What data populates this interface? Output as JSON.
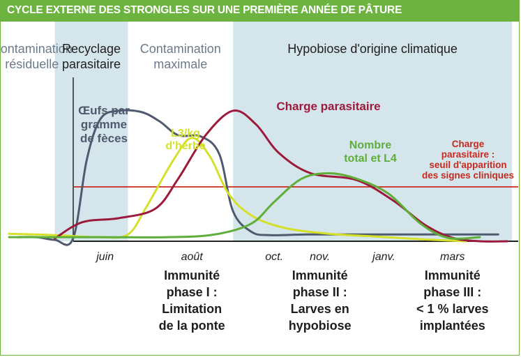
{
  "title": "CYCLE EXTERNE DES STRONGLES SUR UNE PREMIÈRE ANNÉE DE PÂTURE",
  "colors": {
    "accent_green": "#6db33f",
    "band_blue": "#d4e6ec",
    "eggs_curve": "#4f5a6e",
    "l3_curve": "#d4e02a",
    "charge_curve": "#9c1b3c",
    "l4_curve": "#5fae3a",
    "threshold_line": "#c8281e",
    "phase_label_gray": "#6d7a8a"
  },
  "chart_data": {
    "type": "line",
    "title": "CYCLE EXTERNE DES STRONGLES SUR UNE PREMIÈRE ANNÉE DE PÂTURE",
    "xlabel": "",
    "ylabel": "",
    "x_ticks": [
      "juin",
      "août",
      "oct.",
      "nov.",
      "janv.",
      "mars"
    ],
    "x_tick_positions": [
      2.1,
      4.0,
      5.8,
      6.8,
      8.2,
      9.7
    ],
    "xlim": [
      0,
      11
    ],
    "ylim": [
      0,
      10
    ],
    "grid": false,
    "phases": [
      {
        "label": [
          "Contamination",
          "résiduelle"
        ],
        "start": 0,
        "end": 1.0,
        "shaded": false,
        "color": "#6d7a8a"
      },
      {
        "label": [
          "Recyclage",
          "parasitaire"
        ],
        "start": 1.0,
        "end": 2.6,
        "shaded": true,
        "color": "#1e1e1e"
      },
      {
        "label": [
          "Contamination",
          "maximale"
        ],
        "start": 2.6,
        "end": 4.9,
        "shaded": false,
        "color": "#6d7a8a"
      },
      {
        "label": [
          "Hypobiose d'origine climatique"
        ],
        "start": 4.9,
        "end": 11,
        "shaded": true,
        "color": "#1e1e1e"
      }
    ],
    "series": [
      {
        "name": "Œufs par gramme de fèces",
        "label_lines": [
          "Œufs par",
          "gramme",
          "de fèces"
        ],
        "color": "#4f5a6e",
        "x": [
          0.2,
          0.6,
          1.0,
          1.4,
          1.7,
          2.0,
          2.4,
          2.9,
          3.3,
          3.7,
          4.2,
          4.6,
          4.9,
          5.3,
          5.7,
          6.5,
          7.5,
          8.5,
          9.5,
          10.3,
          10.7
        ],
        "y": [
          0.3,
          0.3,
          0.1,
          0.2,
          6.0,
          9.0,
          9.6,
          9.5,
          8.8,
          7.8,
          7.7,
          6.4,
          2.2,
          0.7,
          0.45,
          0.5,
          0.5,
          0.5,
          0.5,
          0.5,
          0.5
        ]
      },
      {
        "name": "L3/kg d'herbe",
        "label_lines": [
          "L3/kg",
          "d'herbe"
        ],
        "color": "#d4e02a",
        "x": [
          0.0,
          1.0,
          2.0,
          2.6,
          3.0,
          3.6,
          4.0,
          4.4,
          4.8,
          5.3,
          6.0,
          7.0,
          8.0,
          9.0,
          10.0
        ],
        "y": [
          0.55,
          0.45,
          0.3,
          0.5,
          2.5,
          6.0,
          7.6,
          6.2,
          3.5,
          1.9,
          1.0,
          0.55,
          0.35,
          0.15,
          0.0
        ]
      },
      {
        "name": "Charge parasitaire",
        "label_lines": [
          "Charge parasitaire"
        ],
        "color": "#9c1b3c",
        "x": [
          1.0,
          1.6,
          2.4,
          3.2,
          3.7,
          4.3,
          4.9,
          5.4,
          5.9,
          6.6,
          7.6,
          8.4,
          9.1,
          9.7,
          10.3,
          10.9
        ],
        "y": [
          0.2,
          1.4,
          1.7,
          2.4,
          4.6,
          7.8,
          9.6,
          8.6,
          6.5,
          5.0,
          4.5,
          3.0,
          1.2,
          0.25,
          0.0,
          0.0
        ]
      },
      {
        "name": "Nombre total et L4",
        "label_lines": [
          "Nombre",
          "total et L4"
        ],
        "color": "#5fae3a",
        "x": [
          0.0,
          2.0,
          3.5,
          4.5,
          5.3,
          5.8,
          6.4,
          7.0,
          7.6,
          8.3,
          9.0,
          9.6,
          10.3
        ],
        "y": [
          0.3,
          0.3,
          0.3,
          0.5,
          1.3,
          2.9,
          4.6,
          5.0,
          4.6,
          3.5,
          1.3,
          0.25,
          0.3
        ]
      }
    ],
    "threshold": {
      "y": 4.0,
      "color": "#c8281e",
      "label_lines": [
        "Charge",
        "parasitaire :",
        "seuil d'apparition",
        "des signes cliniques"
      ]
    },
    "immunity_phases": [
      {
        "x": 4.0,
        "lines": [
          "Immunité",
          "phase I :",
          "Limitation",
          "de la ponte"
        ]
      },
      {
        "x": 6.8,
        "lines": [
          "Immunité",
          "phase II :",
          "Larves en",
          "hypobiose"
        ]
      },
      {
        "x": 9.7,
        "lines": [
          "Immunité",
          "phase III :",
          "< 1 % larves",
          "implantées"
        ]
      }
    ]
  }
}
